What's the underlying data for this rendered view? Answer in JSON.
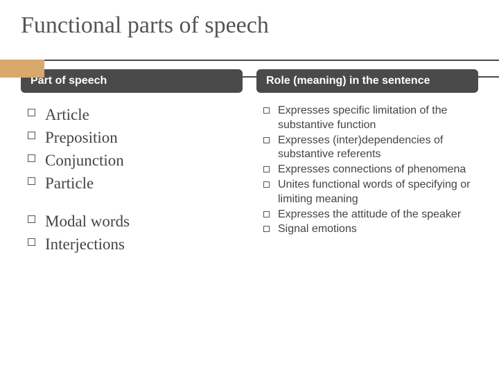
{
  "title": "Functional parts of speech",
  "colors": {
    "accent": "#d9a86c",
    "headerBg": "#4a4a4a",
    "text": "#444444",
    "background": "#ffffff"
  },
  "leftColumn": {
    "header": "Part of speech",
    "group1": [
      "Article",
      "Preposition",
      "Conjunction",
      "Particle"
    ],
    "group2": [
      "Modal words",
      "Interjections"
    ]
  },
  "rightColumn": {
    "header": "Role (meaning) in the sentence",
    "items": [
      "Expresses specific limitation of the substantive function",
      "Expresses (inter)dependencies of substantive referents",
      "Expresses connections of phenomena",
      "Unites functional words of specifying or limiting meaning",
      "Expresses the attitude of the speaker",
      "Signal emotions"
    ]
  }
}
